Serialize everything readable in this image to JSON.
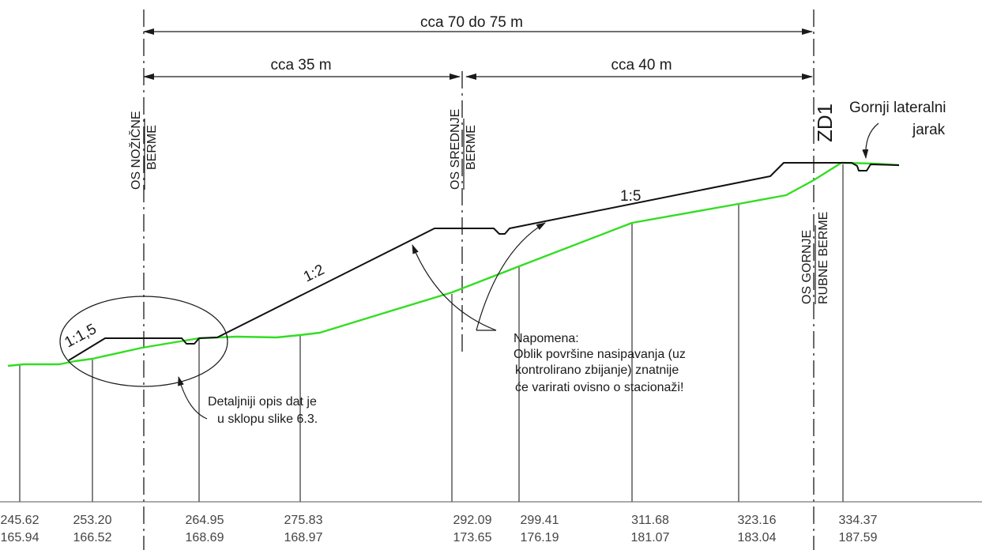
{
  "dimensions": {
    "total": "cca 70 do 75 m",
    "left": "cca 35 m",
    "right": "cca 40 m"
  },
  "axes": {
    "toe_berm_line1": "OS NOŽIČNE",
    "toe_berm_line2": "BERME",
    "middle_berm_line1": "OS SREDNJE",
    "middle_berm_line2": "BERME",
    "upper_berm_line1": "OS GORNJE",
    "upper_berm_line2": "RUBNE BERME",
    "zd1": "ZD1"
  },
  "slopes": {
    "s1": "1:1,5",
    "s2": "1:2",
    "s3": "1:5"
  },
  "callouts": {
    "ditch_line1": "Gornji lateralni",
    "ditch_line2": "jarak",
    "detail_line1": "Detaljniji opis dat je",
    "detail_line2": "u sklopu slike 6.3.",
    "note_title": "Napomena:",
    "note_line1": "Oblik površine nasipavanja (uz",
    "note_line2": "kontrolirano zbijanje) znatnije",
    "note_line3": "će varirati ovisno o stacionaži!"
  },
  "stations": [
    {
      "station": "245.62",
      "elevation": "165.94"
    },
    {
      "station": "253.20",
      "elevation": "166.52"
    },
    {
      "station": "264.95",
      "elevation": "168.69"
    },
    {
      "station": "275.83",
      "elevation": "168.97"
    },
    {
      "station": "292.09",
      "elevation": "173.65"
    },
    {
      "station": "299.41",
      "elevation": "176.19"
    },
    {
      "station": "311.68",
      "elevation": "181.07"
    },
    {
      "station": "323.16",
      "elevation": "183.04"
    },
    {
      "station": "334.37",
      "elevation": "187.59"
    }
  ],
  "colors": {
    "terrain": "#33dd22",
    "design": "#111111"
  }
}
